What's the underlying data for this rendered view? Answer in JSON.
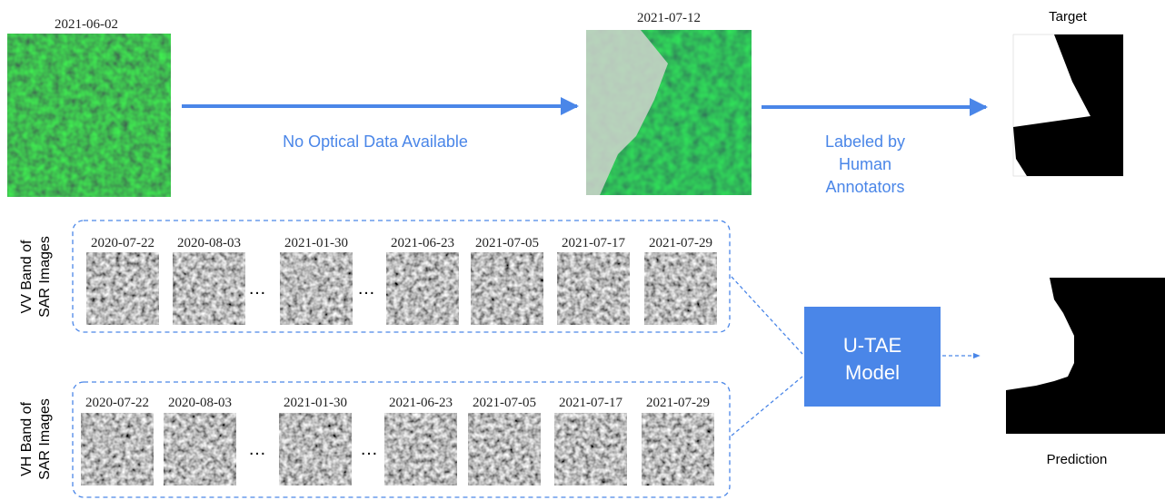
{
  "optical": [
    {
      "date": "2021-06-02"
    },
    {
      "date": "2021-07-12"
    }
  ],
  "arrows": {
    "no_data": "No Optical Data Available",
    "labeled": [
      "Labeled by",
      "Human",
      "Annotators"
    ]
  },
  "target": {
    "label": "Target"
  },
  "sar_rows": [
    {
      "label": [
        "VV Band of",
        "SAR Images"
      ],
      "dates": [
        "2020-07-22",
        "2020-08-03",
        "2021-01-30",
        "2021-06-23",
        "2021-07-05",
        "2021-07-17",
        "2021-07-29"
      ],
      "ellipsis": "…"
    },
    {
      "label": [
        "VH Band of",
        "SAR Images"
      ],
      "dates": [
        "2020-07-22",
        "2020-08-03",
        "2021-01-30",
        "2021-06-23",
        "2021-07-05",
        "2021-07-17",
        "2021-07-29"
      ],
      "ellipsis": "…"
    }
  ],
  "model": {
    "label": [
      "U-TAE",
      "Model"
    ]
  },
  "prediction": {
    "label": "Prediction"
  }
}
